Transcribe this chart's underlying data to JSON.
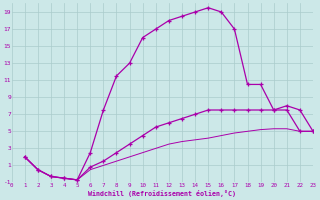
{
  "xlabel": "Windchill (Refroidissement éolien,°C)",
  "bg_color": "#cce8e8",
  "line_color": "#aa00aa",
  "grid_color": "#aacccc",
  "line1_x": [
    1,
    2,
    3,
    4,
    5,
    6,
    7,
    8,
    9,
    10,
    11,
    12,
    13,
    14,
    15,
    16,
    17,
    18,
    19,
    20,
    21,
    22,
    23
  ],
  "line1_y": [
    2.0,
    0.5,
    -0.3,
    -0.5,
    -0.7,
    2.5,
    7.5,
    11.5,
    13.0,
    16.0,
    17.0,
    18.0,
    18.5,
    19.0,
    19.5,
    19.0,
    17.0,
    10.5,
    10.5,
    7.5,
    7.5,
    5.0,
    5.0
  ],
  "line2_x": [
    1,
    2,
    3,
    4,
    5,
    6,
    7,
    8,
    9,
    10,
    11,
    12,
    13,
    14,
    15,
    16,
    17,
    18,
    19,
    20,
    21,
    22,
    23
  ],
  "line2_y": [
    2.0,
    0.5,
    -0.3,
    -0.5,
    -0.7,
    0.8,
    1.5,
    2.5,
    3.5,
    4.5,
    5.5,
    6.0,
    6.5,
    7.0,
    7.5,
    7.5,
    7.5,
    7.5,
    7.5,
    7.5,
    8.0,
    7.5,
    5.0
  ],
  "line3_x": [
    1,
    2,
    3,
    4,
    5,
    6,
    7,
    8,
    9,
    10,
    11,
    12,
    13,
    14,
    15,
    16,
    17,
    18,
    19,
    20,
    21,
    22,
    23
  ],
  "line3_y": [
    2.0,
    0.5,
    -0.3,
    -0.5,
    -0.7,
    0.5,
    1.0,
    1.5,
    2.0,
    2.5,
    3.0,
    3.5,
    3.8,
    4.0,
    4.2,
    4.5,
    4.8,
    5.0,
    5.2,
    5.3,
    5.3,
    5.0,
    5.0
  ],
  "xlim": [
    0,
    23
  ],
  "ylim": [
    -1,
    20
  ],
  "xticks": [
    0,
    1,
    2,
    3,
    4,
    5,
    6,
    7,
    8,
    9,
    10,
    11,
    12,
    13,
    14,
    15,
    16,
    17,
    18,
    19,
    20,
    21,
    22,
    23
  ],
  "yticks": [
    -1,
    1,
    3,
    5,
    7,
    9,
    11,
    13,
    15,
    17,
    19
  ]
}
